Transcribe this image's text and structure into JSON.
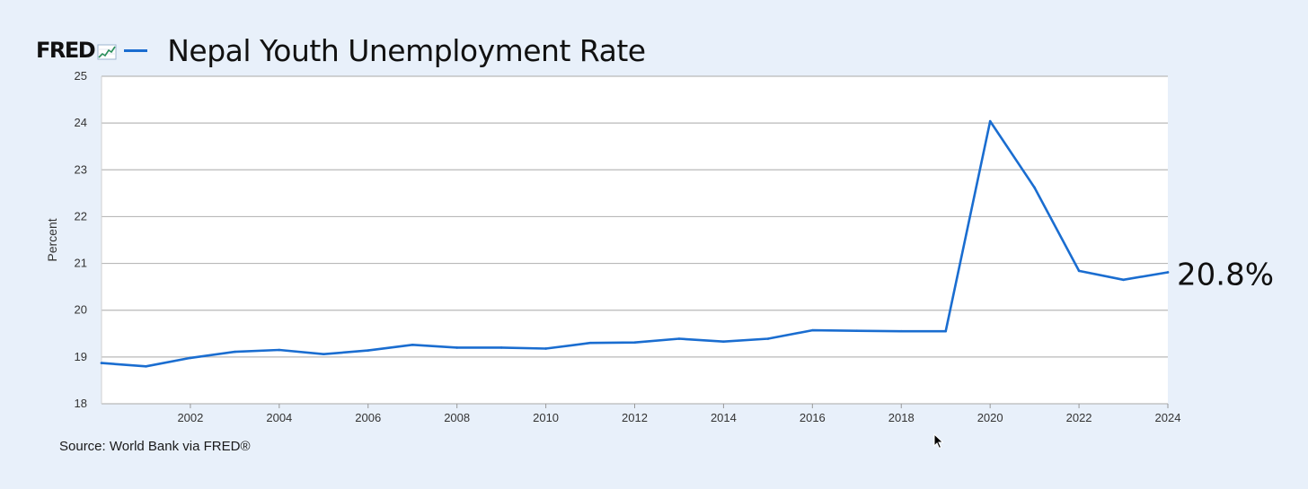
{
  "header": {
    "logo_text": "FRED",
    "logo_icon": "line-chart-icon",
    "title": "Nepal Youth Unemployment Rate"
  },
  "source": "Source: World Bank via FRED®",
  "colors": {
    "series": "#1a6dd0",
    "grid": "#b9b9b9",
    "plot_background": "#ffffff",
    "page_background": "#e8f0fa"
  },
  "chart_data": {
    "type": "line",
    "title": "Nepal Youth Unemployment Rate",
    "xlabel": "",
    "ylabel": "Percent",
    "xlim": [
      2000,
      2024
    ],
    "ylim": [
      18,
      25
    ],
    "xticks": [
      "2002",
      "2004",
      "2006",
      "2008",
      "2010",
      "2012",
      "2014",
      "2016",
      "2018",
      "2020",
      "2022",
      "2024"
    ],
    "yticks": [
      "18",
      "19",
      "20",
      "21",
      "22",
      "23",
      "24",
      "25"
    ],
    "grid": true,
    "last_value_label": "20.8%",
    "series": [
      {
        "name": "Nepal Youth Unemployment Rate",
        "x": [
          2000,
          2001,
          2002,
          2003,
          2004,
          2005,
          2006,
          2007,
          2008,
          2009,
          2010,
          2011,
          2012,
          2013,
          2014,
          2015,
          2016,
          2017,
          2018,
          2019,
          2020,
          2021,
          2022,
          2023,
          2024
        ],
        "y": [
          18.87,
          18.8,
          18.98,
          19.11,
          19.15,
          19.06,
          19.14,
          19.26,
          19.2,
          19.2,
          19.18,
          19.3,
          19.31,
          19.39,
          19.33,
          19.39,
          19.57,
          19.56,
          19.55,
          19.55,
          24.04,
          22.62,
          20.84,
          20.65,
          20.81
        ]
      }
    ]
  }
}
